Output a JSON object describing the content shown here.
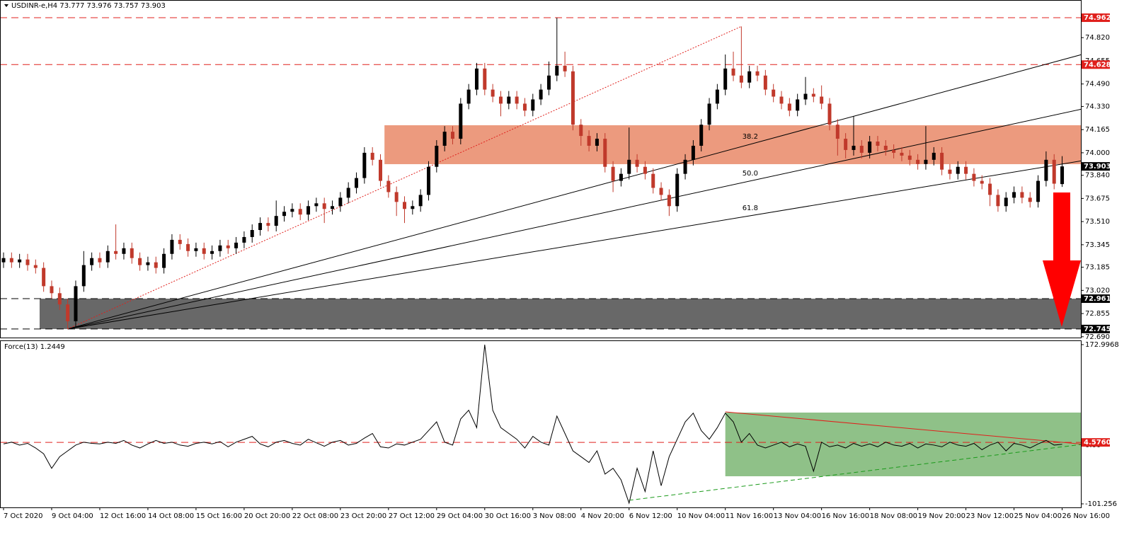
{
  "chart_data": [
    {
      "type": "candlestick",
      "title": "USDINR-e,H4  73.777 73.976 73.757 73.903",
      "categories": [
        "7 Oct 2020",
        null,
        null,
        null,
        null,
        null,
        "9 Oct 04:00",
        null,
        null,
        null,
        null,
        null,
        "12 Oct 16:00",
        null,
        null,
        null,
        null,
        null,
        "14 Oct 08:00",
        null,
        null,
        null,
        null,
        null,
        "15 Oct 16:00",
        null,
        null,
        null,
        null,
        null,
        "20 Oct 20:00",
        null,
        null,
        null,
        null,
        null,
        "22 Oct 08:00",
        null,
        null,
        null,
        null,
        null,
        "23 Oct 20:00",
        null,
        null,
        null,
        null,
        null,
        "27 Oct 12:00",
        null,
        null,
        null,
        null,
        null,
        "29 Oct 04:00",
        null,
        null,
        null,
        null,
        null,
        "30 Oct 16:00",
        null,
        null,
        null,
        null,
        null,
        "3 Nov 08:00",
        null,
        null,
        null,
        null,
        null,
        "4 Nov 20:00",
        null,
        null,
        null,
        null,
        null,
        "6 Nov 12:00",
        null,
        null,
        null,
        null,
        null,
        "10 Nov 04:00",
        null,
        null,
        null,
        null,
        null,
        "11 Nov 16:00",
        null,
        null,
        null,
        null,
        null,
        "13 Nov 04:00",
        null,
        null,
        null,
        null,
        null,
        "16 Nov 16:00",
        null,
        null,
        null,
        null,
        null,
        "18 Nov 08:00",
        null,
        null,
        null,
        null,
        null,
        "19 Nov 20:00",
        null,
        null,
        null,
        null,
        null,
        "23 Nov 12:00",
        null,
        null,
        null,
        null,
        null,
        "25 Nov 04:00",
        null,
        null,
        null,
        null,
        null,
        "26 Nov 16:00"
      ],
      "open": [
        73.22,
        73.25,
        73.22,
        73.24,
        73.2,
        73.18,
        73.05,
        73.0,
        72.92,
        72.8,
        73.05,
        73.2,
        73.25,
        73.22,
        73.3,
        73.28,
        73.32,
        73.25,
        73.2,
        73.22,
        73.18,
        73.28,
        73.38,
        73.35,
        73.3,
        73.32,
        73.28,
        73.3,
        73.34,
        73.32,
        73.36,
        73.4,
        73.45,
        73.5,
        73.48,
        73.55,
        73.58,
        73.6,
        73.56,
        73.62,
        73.64,
        73.6,
        73.62,
        73.68,
        73.75,
        73.82,
        74.0,
        73.95,
        73.8,
        73.72,
        73.65,
        73.6,
        73.62,
        73.7,
        73.9,
        74.05,
        74.15,
        74.1,
        74.35,
        74.45,
        74.6,
        74.45,
        74.4,
        74.35,
        74.4,
        74.35,
        74.3,
        74.38,
        74.45,
        74.55,
        74.62,
        74.58,
        74.2,
        74.12,
        74.05,
        74.1,
        73.9,
        73.8,
        73.85,
        73.95,
        73.9,
        73.85,
        73.75,
        73.7,
        73.62,
        73.85,
        73.95,
        74.05,
        74.2,
        74.35,
        74.45,
        74.6,
        74.55,
        74.5,
        74.58,
        74.55,
        74.45,
        74.4,
        74.35,
        74.3,
        74.38,
        74.42,
        74.4,
        74.35,
        74.2,
        74.1,
        74.02,
        74.05,
        74.0,
        74.08,
        74.05,
        74.02,
        74.0,
        73.98,
        73.95,
        73.92,
        73.95,
        74.0,
        73.88,
        73.85,
        73.9,
        73.85,
        73.8,
        73.78,
        73.7,
        73.62,
        73.68,
        73.72,
        73.68,
        73.65,
        73.8,
        73.95,
        73.777
      ],
      "high": [
        73.29,
        73.29,
        73.28,
        73.28,
        73.24,
        73.22,
        73.09,
        73.04,
        72.96,
        73.09,
        73.3,
        73.29,
        73.29,
        73.34,
        73.49,
        73.36,
        73.36,
        73.29,
        73.26,
        73.26,
        73.32,
        73.42,
        73.42,
        73.39,
        73.36,
        73.36,
        73.34,
        73.38,
        73.38,
        73.4,
        73.44,
        73.49,
        73.54,
        73.54,
        73.66,
        73.62,
        73.64,
        73.64,
        73.66,
        73.68,
        73.68,
        73.66,
        73.72,
        73.79,
        73.86,
        74.04,
        74.04,
        73.99,
        73.84,
        73.76,
        73.69,
        73.66,
        73.74,
        73.94,
        74.09,
        74.19,
        74.19,
        74.39,
        74.49,
        74.64,
        74.64,
        74.49,
        74.44,
        74.44,
        74.44,
        74.39,
        74.42,
        74.49,
        74.65,
        74.962,
        74.72,
        74.62,
        74.24,
        74.16,
        74.14,
        74.14,
        73.94,
        73.89,
        74.18,
        73.99,
        73.94,
        73.89,
        73.79,
        73.74,
        73.89,
        73.99,
        74.09,
        74.24,
        74.39,
        74.49,
        74.7,
        74.72,
        74.9,
        74.62,
        74.62,
        74.59,
        74.49,
        74.44,
        74.39,
        74.42,
        74.54,
        74.46,
        74.48,
        74.39,
        74.24,
        74.14,
        74.26,
        74.09,
        74.12,
        74.12,
        74.09,
        74.06,
        74.04,
        74.02,
        73.99,
        74.19,
        74.04,
        74.04,
        73.92,
        73.94,
        73.94,
        73.89,
        73.84,
        73.82,
        73.74,
        73.72,
        73.76,
        73.76,
        73.72,
        73.84,
        74.01,
        73.99,
        73.976
      ],
      "low": [
        73.18,
        73.18,
        73.18,
        73.16,
        73.14,
        73.01,
        72.96,
        72.88,
        72.745,
        72.76,
        73.01,
        73.16,
        73.18,
        73.18,
        73.24,
        73.24,
        73.21,
        73.16,
        73.16,
        73.14,
        73.14,
        73.24,
        73.31,
        73.26,
        73.26,
        73.24,
        73.24,
        73.26,
        73.28,
        73.28,
        73.32,
        73.36,
        73.41,
        73.44,
        73.44,
        73.51,
        73.54,
        73.52,
        73.52,
        73.58,
        73.5,
        73.56,
        73.58,
        73.64,
        73.71,
        73.78,
        73.91,
        73.76,
        73.68,
        73.55,
        73.5,
        73.56,
        73.58,
        73.66,
        73.86,
        74.01,
        74.06,
        74.06,
        74.31,
        74.41,
        74.41,
        74.36,
        74.26,
        74.31,
        74.31,
        74.26,
        74.26,
        74.34,
        74.41,
        74.51,
        74.54,
        74.16,
        74.05,
        74.01,
        74.01,
        73.86,
        73.72,
        73.76,
        73.81,
        73.86,
        73.81,
        73.71,
        73.66,
        73.55,
        73.58,
        73.81,
        73.91,
        74.01,
        74.16,
        74.31,
        74.41,
        74.51,
        74.46,
        74.46,
        74.51,
        74.41,
        74.36,
        74.31,
        74.26,
        74.26,
        74.34,
        74.36,
        74.31,
        74.16,
        73.98,
        73.96,
        73.98,
        73.96,
        73.96,
        74.01,
        73.98,
        73.96,
        73.94,
        73.91,
        73.88,
        73.88,
        73.91,
        73.84,
        73.81,
        73.81,
        73.81,
        73.76,
        73.74,
        73.62,
        73.58,
        73.58,
        73.64,
        73.64,
        73.61,
        73.61,
        73.76,
        73.74,
        73.757
      ],
      "close": [
        73.25,
        73.22,
        73.24,
        73.2,
        73.18,
        73.05,
        73.0,
        72.92,
        72.8,
        73.05,
        73.2,
        73.25,
        73.22,
        73.3,
        73.28,
        73.32,
        73.25,
        73.2,
        73.22,
        73.18,
        73.28,
        73.38,
        73.35,
        73.3,
        73.32,
        73.28,
        73.3,
        73.34,
        73.32,
        73.36,
        73.4,
        73.45,
        73.5,
        73.48,
        73.55,
        73.58,
        73.6,
        73.56,
        73.62,
        73.64,
        73.6,
        73.62,
        73.68,
        73.75,
        73.82,
        74.0,
        73.95,
        73.8,
        73.72,
        73.65,
        73.6,
        73.62,
        73.7,
        73.9,
        74.05,
        74.15,
        74.1,
        74.35,
        74.45,
        74.6,
        74.45,
        74.4,
        74.35,
        74.4,
        74.35,
        74.3,
        74.38,
        74.45,
        74.55,
        74.62,
        74.58,
        74.2,
        74.12,
        74.05,
        74.1,
        73.9,
        73.8,
        73.85,
        73.95,
        73.9,
        73.85,
        73.75,
        73.7,
        73.62,
        73.85,
        73.95,
        74.05,
        74.2,
        74.35,
        74.45,
        74.6,
        74.55,
        74.5,
        74.58,
        74.55,
        74.45,
        74.4,
        74.35,
        74.3,
        74.38,
        74.42,
        74.4,
        74.35,
        74.2,
        74.1,
        74.02,
        74.05,
        74.0,
        74.08,
        74.05,
        74.02,
        74.0,
        73.98,
        73.95,
        73.92,
        73.95,
        74.0,
        73.88,
        73.85,
        73.9,
        73.85,
        73.8,
        73.78,
        73.7,
        73.62,
        73.68,
        73.72,
        73.68,
        73.65,
        73.8,
        73.95,
        73.78,
        73.903
      ],
      "up_color": "#000000",
      "down_color": "#c0392b",
      "ylim": [
        72.684,
        75.073
      ],
      "yticks": [
        {
          "value": 74.82,
          "label": "74.820"
        },
        74.655,
        {
          "value": 74.49,
          "label": "74.490"
        },
        {
          "value": 74.33,
          "label": "74.330"
        },
        74.165,
        {
          "value": 74.0,
          "label": "74.000"
        },
        {
          "value": 73.84,
          "label": "73.840"
        },
        73.675,
        {
          "value": 73.51,
          "label": "73.510"
        },
        73.345,
        73.185,
        {
          "value": 73.02,
          "label": "73.020"
        },
        72.855,
        {
          "value": 72.69,
          "label": "72.690"
        }
      ],
      "levels": [
        {
          "value": 74.962,
          "color": "#e0201c",
          "style": "dashed"
        },
        {
          "value": 74.628,
          "color": "#e0201c",
          "style": "dashed"
        },
        {
          "value": 73.903,
          "color": "#000000",
          "style": "none"
        },
        {
          "value": 72.961,
          "color": "#000000",
          "style": "dashed"
        },
        {
          "value": 72.745,
          "color": "#000000",
          "style": "dashed"
        }
      ],
      "zones": [
        {
          "start": 48,
          "from": 74.196,
          "to": 73.919,
          "color": "#ec9a7e"
        },
        {
          "start": 5,
          "from": 72.961,
          "to": 72.745,
          "color": "#686868"
        }
      ],
      "trendlines": [
        {
          "from": 8,
          "from_value": 72.745,
          "to": 132,
          "to_value": 74.662,
          "ray": true,
          "color": "#000000",
          "label": "38.2"
        },
        {
          "from": 8,
          "from_value": 72.745,
          "to": 132,
          "to_value": 74.281,
          "ray": true,
          "color": "#000000",
          "label": "50.0"
        },
        {
          "from": 8,
          "from_value": 72.745,
          "to": 132,
          "to_value": 73.92,
          "ray": true,
          "color": "#000000",
          "label": "61.8"
        },
        {
          "from": 8,
          "from_value": 72.745,
          "to": 92,
          "to_value": 74.9,
          "ray": false,
          "color": "#e0201c",
          "dotted": true
        }
      ]
    },
    {
      "type": "line",
      "title": "Force(13) 1.2449",
      "values": [
        2,
        5,
        0,
        3,
        -5,
        -15,
        -40,
        -20,
        -10,
        0,
        5,
        3,
        2,
        5,
        3,
        8,
        0,
        -5,
        2,
        8,
        3,
        5,
        0,
        -2,
        3,
        5,
        2,
        6,
        -3,
        5,
        10,
        15,
        2,
        -3,
        5,
        8,
        3,
        0,
        10,
        4,
        -2,
        5,
        8,
        0,
        3,
        12,
        20,
        -3,
        -5,
        2,
        0,
        5,
        10,
        25,
        40,
        5,
        0,
        45,
        60,
        30,
        172.9968,
        60,
        30,
        20,
        10,
        -5,
        15,
        5,
        0,
        50,
        20,
        -10,
        -20,
        -30,
        -10,
        -50,
        -40,
        -60,
        -100,
        -40,
        -80,
        -10,
        -70,
        -20,
        10,
        40,
        55,
        25,
        10,
        30,
        55,
        40,
        5,
        20,
        0,
        -5,
        0,
        5,
        -3,
        2,
        -2,
        -45,
        5,
        -3,
        0,
        -5,
        3,
        -2,
        2,
        -3,
        5,
        0,
        -2,
        3,
        -5,
        2,
        0,
        -3,
        5,
        0,
        -2,
        3,
        -8,
        0,
        5,
        -10,
        3,
        0,
        -5,
        2,
        8,
        0,
        1.2449
      ],
      "color": "#000000",
      "ylim": [
        -101.256,
        172.9968
      ],
      "yticks": [
        172.9968,
        {
          "value": 0,
          "label": "0.00"
        },
        -101.256
      ],
      "levels": [
        {
          "value": 4.576,
          "label": "4.5760",
          "color": "#e0201c"
        }
      ],
      "zone": {
        "start": 90,
        "from": 56,
        "to": -53.7,
        "color": "#8fc188"
      },
      "trendlines": [
        {
          "from": 90,
          "from_value": 57.2,
          "to": 132,
          "to_value": 4.8,
          "color": "#e0201c",
          "dashed": false
        },
        {
          "from": 78,
          "from_value": -95.1,
          "to": 132,
          "to_value": -3,
          "color": "#1a9a1a",
          "dashed": true
        }
      ]
    }
  ]
}
